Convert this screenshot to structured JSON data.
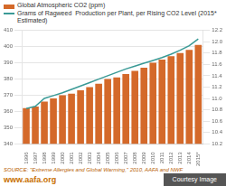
{
  "chart_data": {
    "type": "bar",
    "categories": [
      "1996",
      "1997",
      "1998",
      "1999",
      "2000",
      "2001",
      "2002",
      "2003",
      "2004",
      "2005",
      "2006",
      "2007",
      "2008",
      "2009",
      "2010",
      "2011",
      "2012",
      "2013",
      "2014",
      "2015*"
    ],
    "series": [
      {
        "name": "Global Atmospheric CO2 (ppm)",
        "type": "bar",
        "color": "#d4692a",
        "values": [
          362,
          363,
          366,
          368,
          370,
          371,
          373,
          375,
          377,
          380,
          381,
          383,
          385,
          387,
          390,
          392,
          394,
          396,
          398,
          401
        ]
      },
      {
        "name": "Grams of Ragweed  Production per Plant, per Rising CO2 Level (2015* Estimated)",
        "type": "line",
        "color": "#3a9a96",
        "axis": "y2",
        "values": [
          10.82,
          10.86,
          11.0,
          11.05,
          11.1,
          11.16,
          11.22,
          11.28,
          11.34,
          11.4,
          11.46,
          11.52,
          11.57,
          11.62,
          11.67,
          11.72,
          11.78,
          11.85,
          11.93,
          12.05
        ]
      }
    ],
    "ylim": [
      340,
      410
    ],
    "yticks": [
      340,
      350,
      360,
      370,
      380,
      390,
      400,
      410
    ],
    "y2lim": [
      10.2,
      12.2
    ],
    "y2ticks": [
      10.2,
      10.4,
      10.6,
      10.8,
      {
        "value": 11.0,
        "label": "11.0"
      },
      11.2,
      11.4,
      11.6,
      11.8,
      {
        "value": 12.0,
        "label": "12.0"
      },
      12.2
    ],
    "grid": true,
    "legend": "top",
    "annotations": [
      "SOURCE: \"Extreme Allergies and Global Warming,\" 2010, AAFA and NWF",
      "www.aafa.org",
      "Courtesy Image"
    ]
  }
}
